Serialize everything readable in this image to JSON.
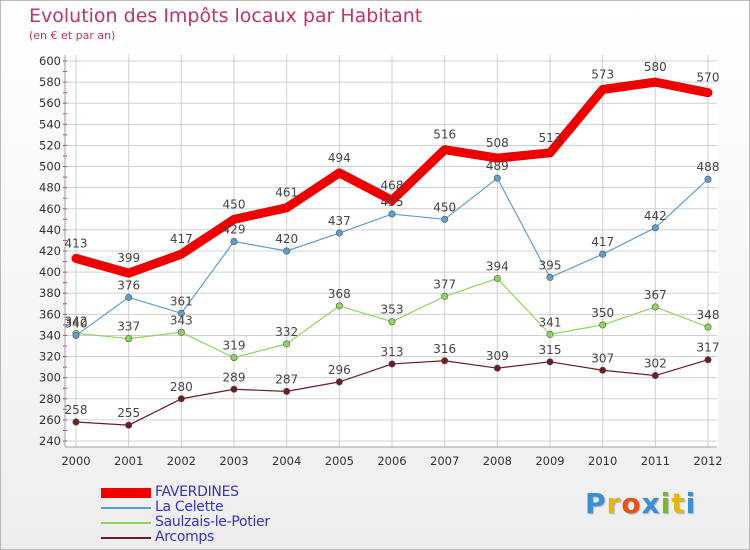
{
  "header": {
    "title": "Evolution des Impôts locaux par Habitant",
    "subtitle": "(en € et par an)"
  },
  "brand": {
    "text": "Proxiti",
    "colors": [
      "#3a8fd6",
      "#e6b415",
      "#e2561a",
      "#3a8fd6",
      "#78b82a",
      "#e6b415",
      "#3a8fd6"
    ]
  },
  "colors": {
    "title": "#c0336b",
    "axis_tick": "#c0336b",
    "grid": "#d0d0d0"
  },
  "chart_data": {
    "type": "line",
    "title": "Evolution des Impôts locaux par Habitant",
    "subtitle": "(en € et par an)",
    "xlabel": "",
    "ylabel": "",
    "categories": [
      "2000",
      "2001",
      "2002",
      "2003",
      "2004",
      "2005",
      "2006",
      "2007",
      "2008",
      "2009",
      "2010",
      "2011",
      "2012"
    ],
    "ylim": [
      240,
      600
    ],
    "yticks": [
      240,
      260,
      280,
      300,
      320,
      340,
      360,
      380,
      400,
      420,
      440,
      460,
      480,
      500,
      520,
      540,
      560,
      580,
      600
    ],
    "grid": true,
    "legend_position": "bottom-left",
    "series": [
      {
        "name": "FAVERDINES",
        "color": "#ee0000",
        "label_color": "#3333cc",
        "values": [
          413,
          399,
          417,
          450,
          461,
          494,
          468,
          516,
          508,
          513,
          573,
          580,
          570
        ]
      },
      {
        "name": "La Celette",
        "color": "#5f9ecf",
        "label_color": "#3333cc",
        "values": [
          340,
          376,
          361,
          429,
          420,
          437,
          455,
          450,
          489,
          395,
          417,
          442,
          488
        ]
      },
      {
        "name": "Saulzais-le-Potier",
        "color": "#8ed55a",
        "label_color": "#3333cc",
        "values": [
          342,
          337,
          343,
          319,
          332,
          368,
          353,
          377,
          394,
          341,
          350,
          367,
          348
        ]
      },
      {
        "name": "Arcomps",
        "color": "#6e1c24",
        "label_color": "#3333cc",
        "values": [
          258,
          255,
          280,
          289,
          287,
          296,
          313,
          316,
          309,
          315,
          307,
          302,
          317
        ]
      }
    ]
  }
}
